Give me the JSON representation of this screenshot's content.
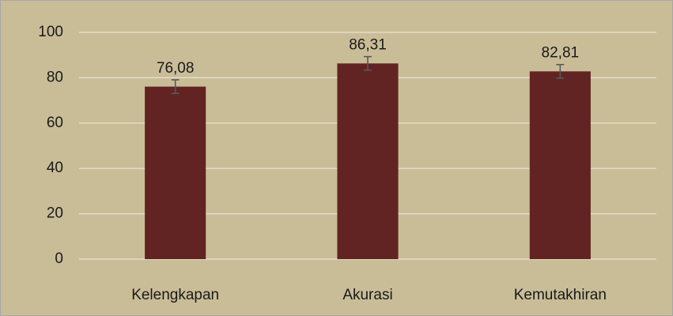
{
  "chart_data": {
    "type": "bar",
    "categories": [
      "Kelengkapan",
      "Akurasi",
      "Kemutakhiran"
    ],
    "values": [
      76.08,
      86.31,
      82.81
    ],
    "value_labels": [
      "76,08",
      "86,31",
      "82,81"
    ],
    "errors": [
      3,
      3,
      3
    ],
    "color": "#622423",
    "ylim": [
      0,
      100
    ],
    "yticks": [
      0,
      20,
      40,
      60,
      80,
      100
    ],
    "grid": true
  }
}
